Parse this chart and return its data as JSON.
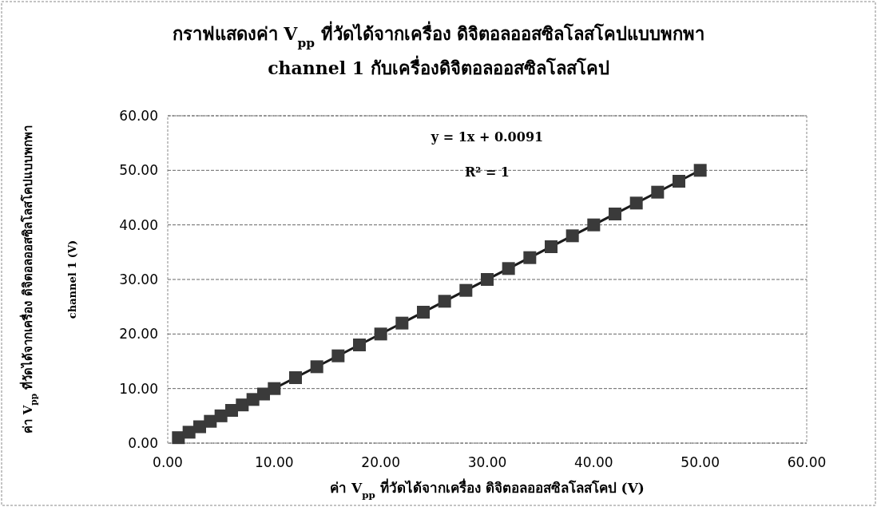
{
  "chart_data": {
    "type": "scatter",
    "title": "กราฟแสดงค่า V$_{pp}$ ที่วัดได้จากเครื่อง ดิจิตอลออสซิลโลสโคปแบบพกพา",
    "subtitle": "channel 1 กับเครื่องดิจิตอลออสซิลโลสโคป",
    "xlabel": "ค่า V$_{pp}$ ที่วัดได้จากเครื่อง ดิจิตอลออสซิลโลสโคป (V)",
    "ylabel": "ค่า V$_{pp}$ ที่วัดได้จากเครื่อง ดิจิตอลออสซิลโลสโคปแบบพกพา\nchannel 1 (V)",
    "annotations": [
      "y = 1x + 0.0091",
      "R² = 1"
    ],
    "series": [
      {
        "color": "#3a3a3a",
        "marker": "square",
        "x": [
          1,
          2,
          3,
          4,
          5,
          6,
          7,
          8,
          9,
          10,
          12,
          14,
          16,
          18,
          20,
          22,
          24,
          26,
          28,
          30,
          32,
          34,
          36,
          38,
          40,
          42,
          44,
          46,
          48,
          50
        ],
        "values": [
          1,
          2,
          3,
          4,
          5,
          6,
          7,
          8,
          9,
          10,
          12,
          14,
          16,
          18,
          20,
          22,
          24,
          26,
          28,
          30,
          32,
          34,
          36,
          38,
          40,
          42,
          44,
          46,
          48,
          50
        ]
      },
      {
        "type": "line",
        "color": "#1a1a1a",
        "x": [
          1,
          50
        ],
        "values": [
          1.01,
          50.01
        ]
      }
    ],
    "xlim": [
      0,
      60
    ],
    "ylim": [
      0,
      60
    ],
    "xticks": [
      {
        "value": 0,
        "label": "0.00"
      },
      {
        "value": 10,
        "label": "10.00"
      },
      {
        "value": 20,
        "label": "20.00"
      },
      {
        "value": 30,
        "label": "30.00"
      },
      {
        "value": 40,
        "label": "40.00"
      },
      {
        "value": 50,
        "label": "50.00"
      },
      {
        "value": 60,
        "label": "60.00"
      }
    ],
    "yticks": [
      {
        "value": 0,
        "label": "0.00"
      },
      {
        "value": 10,
        "label": "10.00"
      },
      {
        "value": 20,
        "label": "20.00"
      },
      {
        "value": 30,
        "label": "30.00"
      },
      {
        "value": 40,
        "label": "40.00"
      },
      {
        "value": 50,
        "label": "50.00"
      },
      {
        "value": 60,
        "label": "60.00"
      }
    ],
    "grid": "y"
  }
}
